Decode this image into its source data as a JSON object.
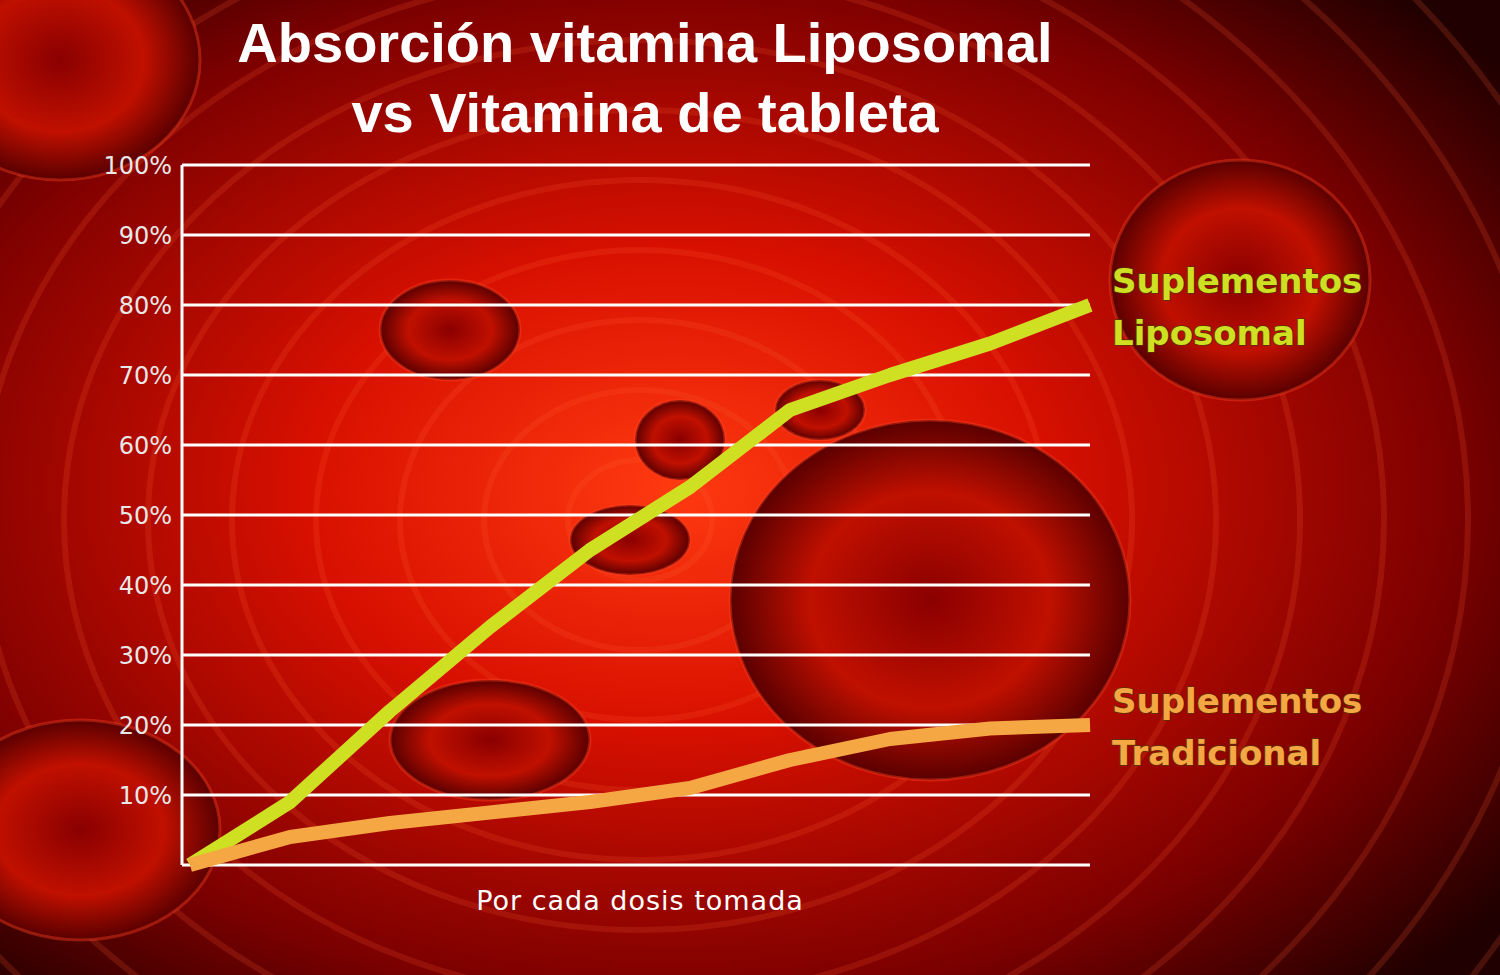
{
  "chart_data": {
    "type": "line",
    "title": [
      "Absorción vitamina Liposomal",
      "vs Vitamina de tableta"
    ],
    "xlabel": "Por cada dosis tomada",
    "categories": [
      null,
      null,
      null,
      null,
      null,
      null,
      null,
      null,
      null,
      null
    ],
    "series": [
      {
        "name": "Suplementos Liposomal",
        "color": "#cfdf22",
        "values": [
          0,
          9,
          22,
          34,
          45,
          54,
          65,
          70,
          74.5,
          80
        ]
      },
      {
        "name": "Suplementos Tradicional",
        "color": "#f5a743",
        "values": [
          0,
          4,
          6,
          7.5,
          9,
          11,
          15,
          18,
          19.5,
          20
        ]
      }
    ],
    "ylim": [
      0,
      100
    ],
    "yticks": [
      {
        "value": 10,
        "label": "10%"
      },
      {
        "value": 20,
        "label": "20%"
      },
      {
        "value": 30,
        "label": "30%"
      },
      {
        "value": 40,
        "label": "40%"
      },
      {
        "value": 50,
        "label": "50%"
      },
      {
        "value": 60,
        "label": "60%"
      },
      {
        "value": 70,
        "label": "70%"
      },
      {
        "value": 80,
        "label": "80%"
      },
      {
        "value": 90,
        "label": "90%"
      },
      {
        "value": 100,
        "label": "100%"
      }
    ],
    "grid": true
  }
}
